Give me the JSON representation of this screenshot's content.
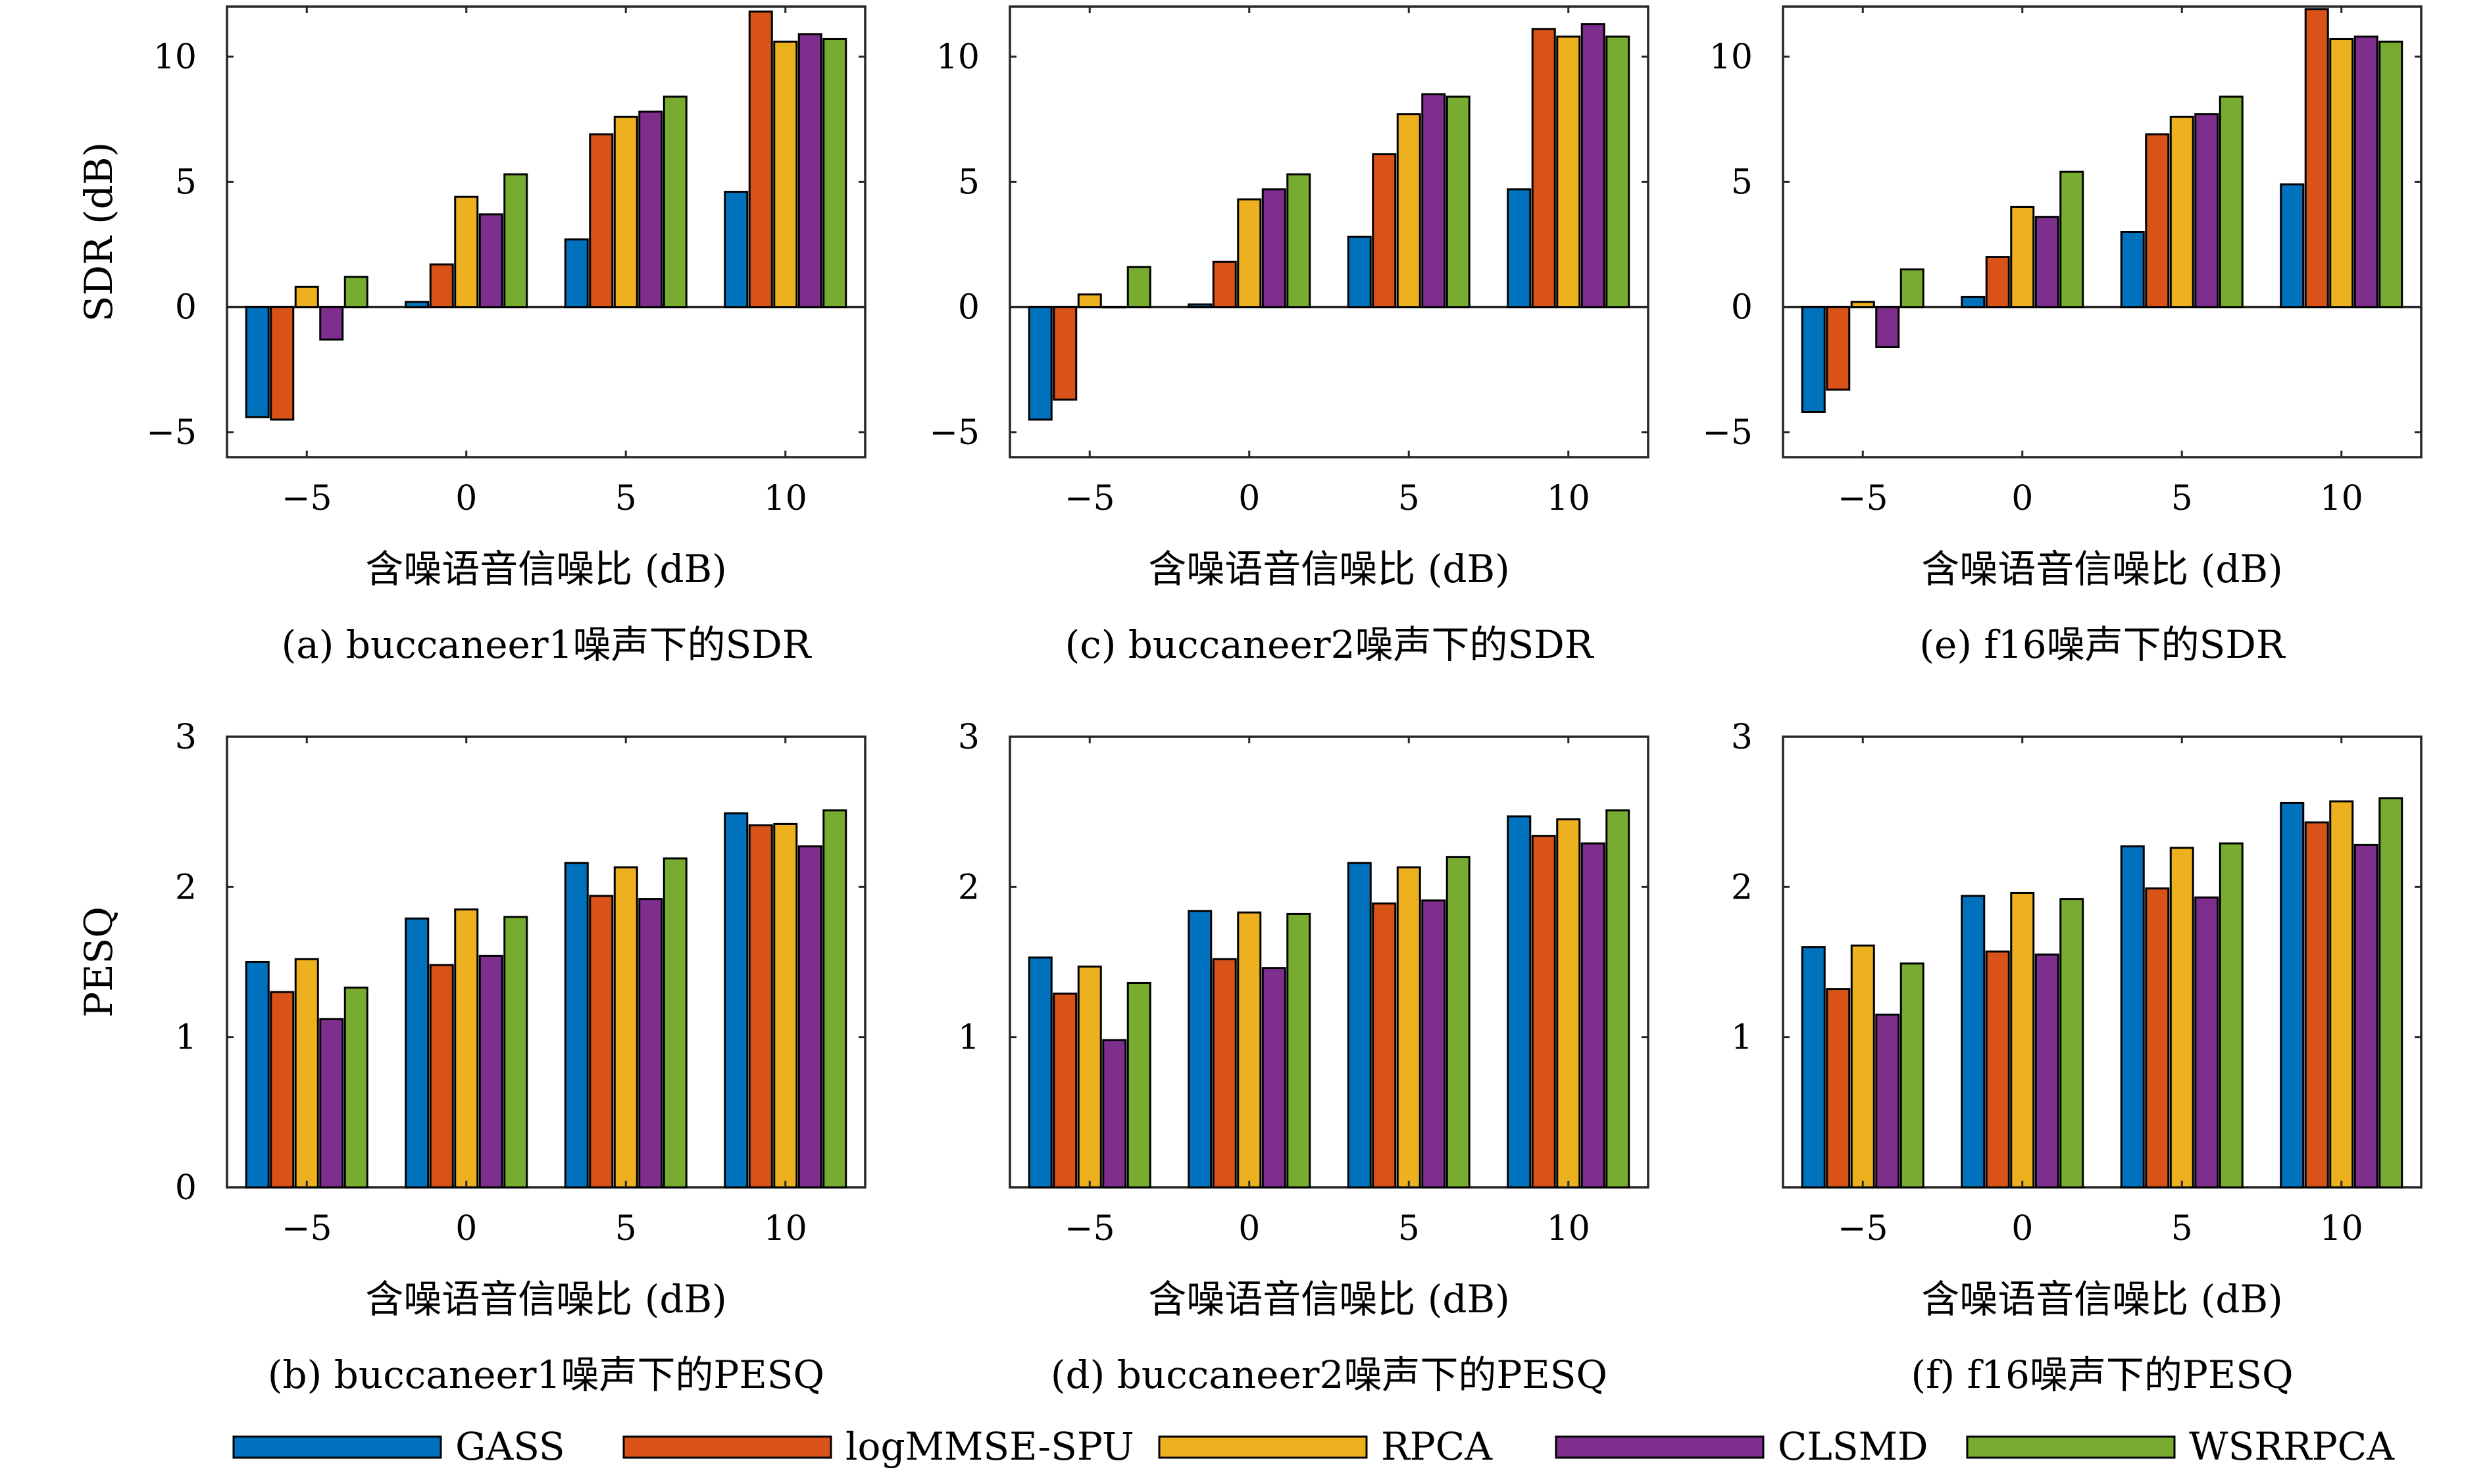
{
  "colors": {
    "GASS": "#0072BD",
    "logMMSE-SPU": "#D95319",
    "RPCA": "#EDB120",
    "CLSMD": "#7E2F8E",
    "WSRRPCA": "#77AC30"
  },
  "legend": [
    "GASS",
    "logMMSE-SPU",
    "RPCA",
    "CLSMD",
    "WSRRPCA"
  ],
  "chart_data": [
    {
      "id": "a",
      "type": "bar",
      "caption": "(a) buccaneer1噪声下的SDR",
      "xlabel": "含噪语音信噪比 (dB)",
      "ylabel": "SDR (dB)",
      "categories": [
        "−5",
        "0",
        "5",
        "10"
      ],
      "ylim": [
        -6,
        12
      ],
      "yticks": [
        -5,
        0,
        5,
        10
      ],
      "ytick_labels": [
        "−5",
        "0",
        "5",
        "10"
      ],
      "series": [
        {
          "name": "GASS",
          "values": [
            -4.4,
            0.2,
            2.7,
            4.6
          ]
        },
        {
          "name": "logMMSE-SPU",
          "values": [
            -4.5,
            1.7,
            6.9,
            11.8
          ]
        },
        {
          "name": "RPCA",
          "values": [
            0.8,
            4.4,
            7.6,
            10.6
          ]
        },
        {
          "name": "CLSMD",
          "values": [
            -1.3,
            3.7,
            7.8,
            10.9
          ]
        },
        {
          "name": "WSRRPCA",
          "values": [
            1.2,
            5.3,
            8.4,
            10.7
          ]
        }
      ]
    },
    {
      "id": "c",
      "type": "bar",
      "caption": "(c) buccaneer2噪声下的SDR",
      "xlabel": "含噪语音信噪比 (dB)",
      "ylabel": "",
      "categories": [
        "−5",
        "0",
        "5",
        "10"
      ],
      "ylim": [
        -6,
        12
      ],
      "yticks": [
        -5,
        0,
        5,
        10
      ],
      "ytick_labels": [
        "−5",
        "0",
        "5",
        "10"
      ],
      "series": [
        {
          "name": "GASS",
          "values": [
            -4.5,
            0.1,
            2.8,
            4.7
          ]
        },
        {
          "name": "logMMSE-SPU",
          "values": [
            -3.7,
            1.8,
            6.1,
            11.1
          ]
        },
        {
          "name": "RPCA",
          "values": [
            0.5,
            4.3,
            7.7,
            10.8
          ]
        },
        {
          "name": "CLSMD",
          "values": [
            0.0,
            4.7,
            8.5,
            11.3
          ]
        },
        {
          "name": "WSRRPCA",
          "values": [
            1.6,
            5.3,
            8.4,
            10.8
          ]
        }
      ]
    },
    {
      "id": "e",
      "type": "bar",
      "caption": "(e) f16噪声下的SDR",
      "xlabel": "含噪语音信噪比 (dB)",
      "ylabel": "",
      "categories": [
        "−5",
        "0",
        "5",
        "10"
      ],
      "ylim": [
        -6,
        12
      ],
      "yticks": [
        -5,
        0,
        5,
        10
      ],
      "ytick_labels": [
        "−5",
        "0",
        "5",
        "10"
      ],
      "series": [
        {
          "name": "GASS",
          "values": [
            -4.2,
            0.4,
            3.0,
            4.9
          ]
        },
        {
          "name": "logMMSE-SPU",
          "values": [
            -3.3,
            2.0,
            6.9,
            11.9
          ]
        },
        {
          "name": "RPCA",
          "values": [
            0.2,
            4.0,
            7.6,
            10.7
          ]
        },
        {
          "name": "CLSMD",
          "values": [
            -1.6,
            3.6,
            7.7,
            10.8
          ]
        },
        {
          "name": "WSRRPCA",
          "values": [
            1.5,
            5.4,
            8.4,
            10.6
          ]
        }
      ]
    },
    {
      "id": "b",
      "type": "bar",
      "caption": "(b) buccaneer1噪声下的PESQ",
      "xlabel": "含噪语音信噪比 (dB)",
      "ylabel": "PESQ",
      "categories": [
        "−5",
        "0",
        "5",
        "10"
      ],
      "ylim": [
        0,
        3
      ],
      "yticks": [
        0,
        1,
        2,
        3
      ],
      "ytick_labels": [
        "0",
        "1",
        "2",
        "3"
      ],
      "series": [
        {
          "name": "GASS",
          "values": [
            1.5,
            1.79,
            2.16,
            2.49
          ]
        },
        {
          "name": "logMMSE-SPU",
          "values": [
            1.3,
            1.48,
            1.94,
            2.41
          ]
        },
        {
          "name": "RPCA",
          "values": [
            1.52,
            1.85,
            2.13,
            2.42
          ]
        },
        {
          "name": "CLSMD",
          "values": [
            1.12,
            1.54,
            1.92,
            2.27
          ]
        },
        {
          "name": "WSRRPCA",
          "values": [
            1.33,
            1.8,
            2.19,
            2.51
          ]
        }
      ]
    },
    {
      "id": "d",
      "type": "bar",
      "caption": "(d) buccaneer2噪声下的PESQ",
      "xlabel": "含噪语音信噪比 (dB)",
      "ylabel": "",
      "categories": [
        "−5",
        "0",
        "5",
        "10"
      ],
      "ylim": [
        0,
        3
      ],
      "yticks": [
        1,
        2,
        3
      ],
      "ytick_labels": [
        "1",
        "2",
        "3"
      ],
      "series": [
        {
          "name": "GASS",
          "values": [
            1.53,
            1.84,
            2.16,
            2.47
          ]
        },
        {
          "name": "logMMSE-SPU",
          "values": [
            1.29,
            1.52,
            1.89,
            2.34
          ]
        },
        {
          "name": "RPCA",
          "values": [
            1.47,
            1.83,
            2.13,
            2.45
          ]
        },
        {
          "name": "CLSMD",
          "values": [
            0.98,
            1.46,
            1.91,
            2.29
          ]
        },
        {
          "name": "WSRRPCA",
          "values": [
            1.36,
            1.82,
            2.2,
            2.51
          ]
        }
      ]
    },
    {
      "id": "f",
      "type": "bar",
      "caption": "(f) f16噪声下的PESQ",
      "xlabel": "含噪语音信噪比 (dB)",
      "ylabel": "",
      "categories": [
        "−5",
        "0",
        "5",
        "10"
      ],
      "ylim": [
        0,
        3
      ],
      "yticks": [
        1,
        2,
        3
      ],
      "ytick_labels": [
        "1",
        "2",
        "3"
      ],
      "series": [
        {
          "name": "GASS",
          "values": [
            1.6,
            1.94,
            2.27,
            2.56
          ]
        },
        {
          "name": "logMMSE-SPU",
          "values": [
            1.32,
            1.57,
            1.99,
            2.43
          ]
        },
        {
          "name": "RPCA",
          "values": [
            1.61,
            1.96,
            2.26,
            2.57
          ]
        },
        {
          "name": "CLSMD",
          "values": [
            1.15,
            1.55,
            1.93,
            2.28
          ]
        },
        {
          "name": "WSRRPCA",
          "values": [
            1.49,
            1.92,
            2.29,
            2.59
          ]
        }
      ]
    }
  ]
}
